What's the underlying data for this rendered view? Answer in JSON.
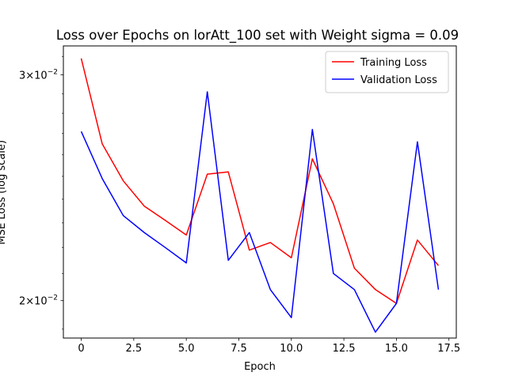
{
  "chart_data": {
    "type": "line",
    "title": "Loss over Epochs on lorAtt_100 set with Weight sigma = 0.09",
    "xlabel": "Epoch",
    "ylabel": "MSE Loss (log scale)",
    "yscale": "log",
    "xlim": [
      -0.85,
      17.85
    ],
    "ylim": [
      0.0187,
      0.0316
    ],
    "xticks": [
      0,
      2.5,
      5,
      7.5,
      10,
      12.5,
      15,
      17.5
    ],
    "xtick_labels": [
      "0",
      "2.5",
      "5.0",
      "7.5",
      "10.0",
      "12.5",
      "15.0",
      "17.5"
    ],
    "yticks": [
      0.02,
      0.03
    ],
    "ytick_labels": [
      {
        "base": "2",
        "mid": "×10",
        "exp": "−2"
      },
      {
        "base": "3",
        "mid": "×10",
        "exp": "−2"
      }
    ],
    "grid": false,
    "legend_position": "top-right",
    "x": [
      0,
      1,
      2,
      3,
      4,
      5,
      6,
      7,
      8,
      9,
      10,
      11,
      12,
      13,
      14,
      15,
      16,
      17
    ],
    "series": [
      {
        "name": "Training Loss",
        "color": "#ff0000",
        "values": [
          0.0309,
          0.0265,
          0.0248,
          0.0237,
          0.0231,
          0.0225,
          0.0251,
          0.0252,
          0.0219,
          0.0222,
          0.0216,
          0.0258,
          0.0238,
          0.0212,
          0.0204,
          0.0199,
          0.0223,
          0.0213
        ]
      },
      {
        "name": "Validation Loss",
        "color": "#0000ff",
        "values": [
          0.0271,
          0.0249,
          0.0233,
          0.0226,
          0.022,
          0.0214,
          0.0291,
          0.0215,
          0.0226,
          0.0204,
          0.0194,
          0.0272,
          0.021,
          0.0204,
          0.0189,
          0.0199,
          0.0266,
          0.0204
        ]
      }
    ]
  }
}
